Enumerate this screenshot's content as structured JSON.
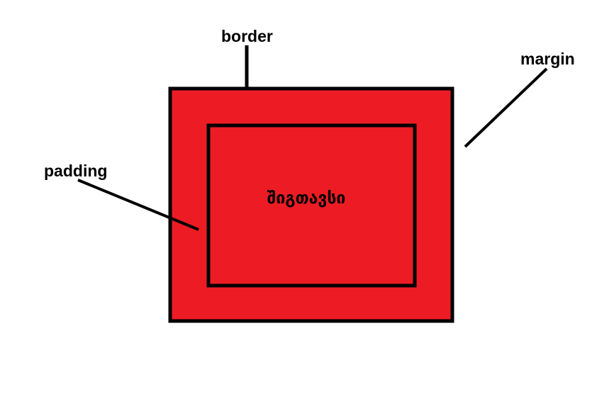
{
  "labels": {
    "border": "border",
    "margin": "margin",
    "padding": "padding",
    "content": "შიგთავსი"
  },
  "colors": {
    "box_fill": "#ed1c24",
    "stroke": "#000000",
    "background": "#ffffff"
  }
}
